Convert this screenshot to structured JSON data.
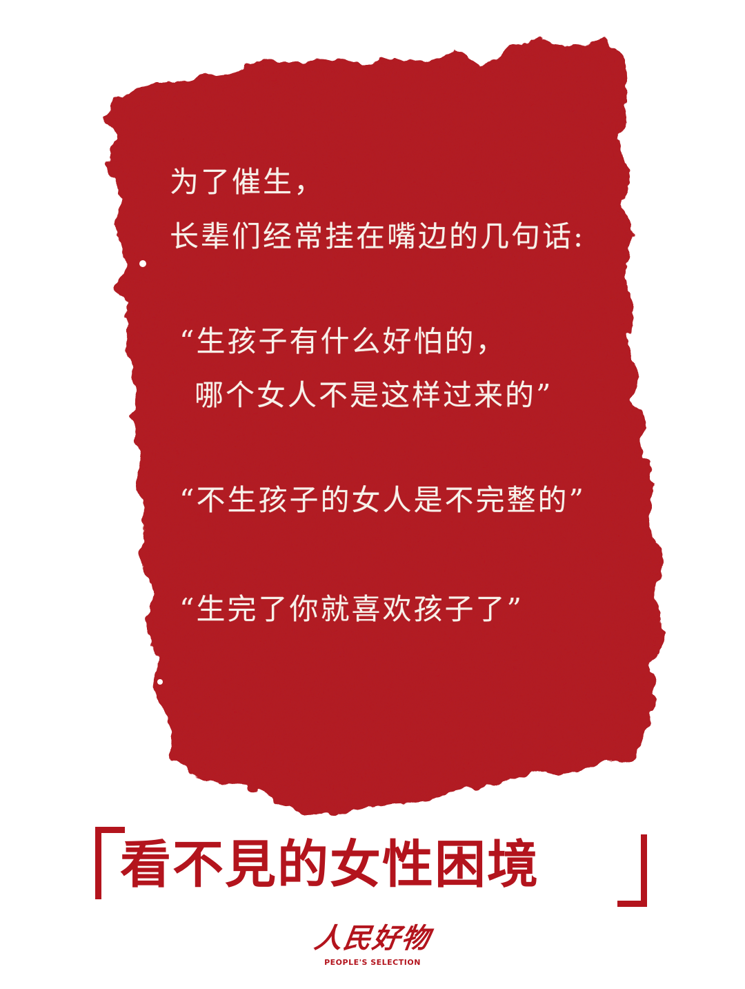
{
  "colors": {
    "background": "#ffffff",
    "paper_red": "#b51c22",
    "text_on_red": "#f7f1ea",
    "title_red": "#b3141d"
  },
  "message": {
    "intro_line_1": "为了催生，",
    "intro_line_2": "长辈们经常挂在嘴边的几句话:",
    "quote_1_line_1": "“生孩子有什么好怕的，",
    "quote_1_line_2": "哪个女人不是这样过来的”",
    "quote_2": "“不生孩子的女人是不完整的”",
    "quote_3": "“生完了你就喜欢孩子了”"
  },
  "title": {
    "text": "看不見的女性困境"
  },
  "brand": {
    "name": "人民好物",
    "tagline": "PEOPLE'S SELECTION"
  }
}
